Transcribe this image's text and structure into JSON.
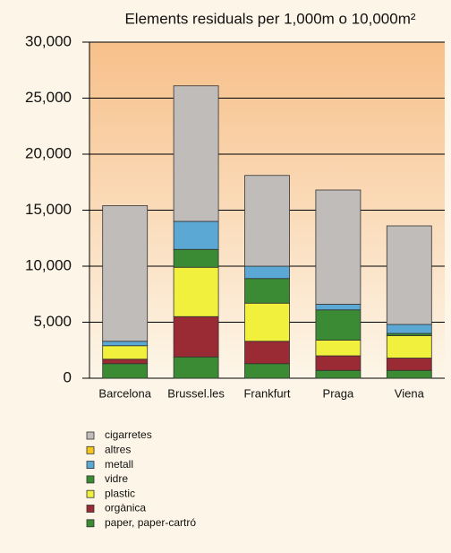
{
  "chart_data": {
    "type": "stacked-bar",
    "title": "Elements residuals per 1,000m o 10,000m²",
    "categories": [
      "Barcelona",
      "Brussel.les",
      "Frankfurt",
      "Praga",
      "Viena"
    ],
    "series": [
      {
        "name": "paper, paper-cartró",
        "color": "#3b8b34",
        "values": [
          1300,
          1900,
          1300,
          700,
          700
        ]
      },
      {
        "name": "orgànica",
        "color": "#9a2a33",
        "values": [
          400,
          3600,
          2000,
          1300,
          1100
        ]
      },
      {
        "name": "plastic",
        "color": "#f1f03c",
        "values": [
          1200,
          4400,
          3400,
          1400,
          2000
        ]
      },
      {
        "name": "vidre",
        "color": "#3b8b34",
        "values": [
          0,
          1600,
          2200,
          2700,
          200
        ]
      },
      {
        "name": "metall",
        "color": "#5ba8d5",
        "values": [
          400,
          2500,
          1100,
          500,
          800
        ]
      },
      {
        "name": "altres",
        "color": "#f5c71a",
        "values": [
          0,
          0,
          0,
          0,
          0
        ]
      },
      {
        "name": "cigarretes",
        "color": "#c0bcba",
        "values": [
          12100,
          12100,
          8100,
          10200,
          8800
        ]
      }
    ],
    "ylim": [
      0,
      30000
    ],
    "yticks": [
      0,
      {
        "value": 5000,
        "label": "5,000"
      },
      {
        "value": 10000,
        "label": "10,000"
      },
      {
        "value": 15000,
        "label": "15,000"
      },
      {
        "value": 20000,
        "label": "20,000"
      },
      {
        "value": 25000,
        "label": "25,000"
      },
      {
        "value": 30000,
        "label": "30,000"
      }
    ],
    "grid": true
  }
}
